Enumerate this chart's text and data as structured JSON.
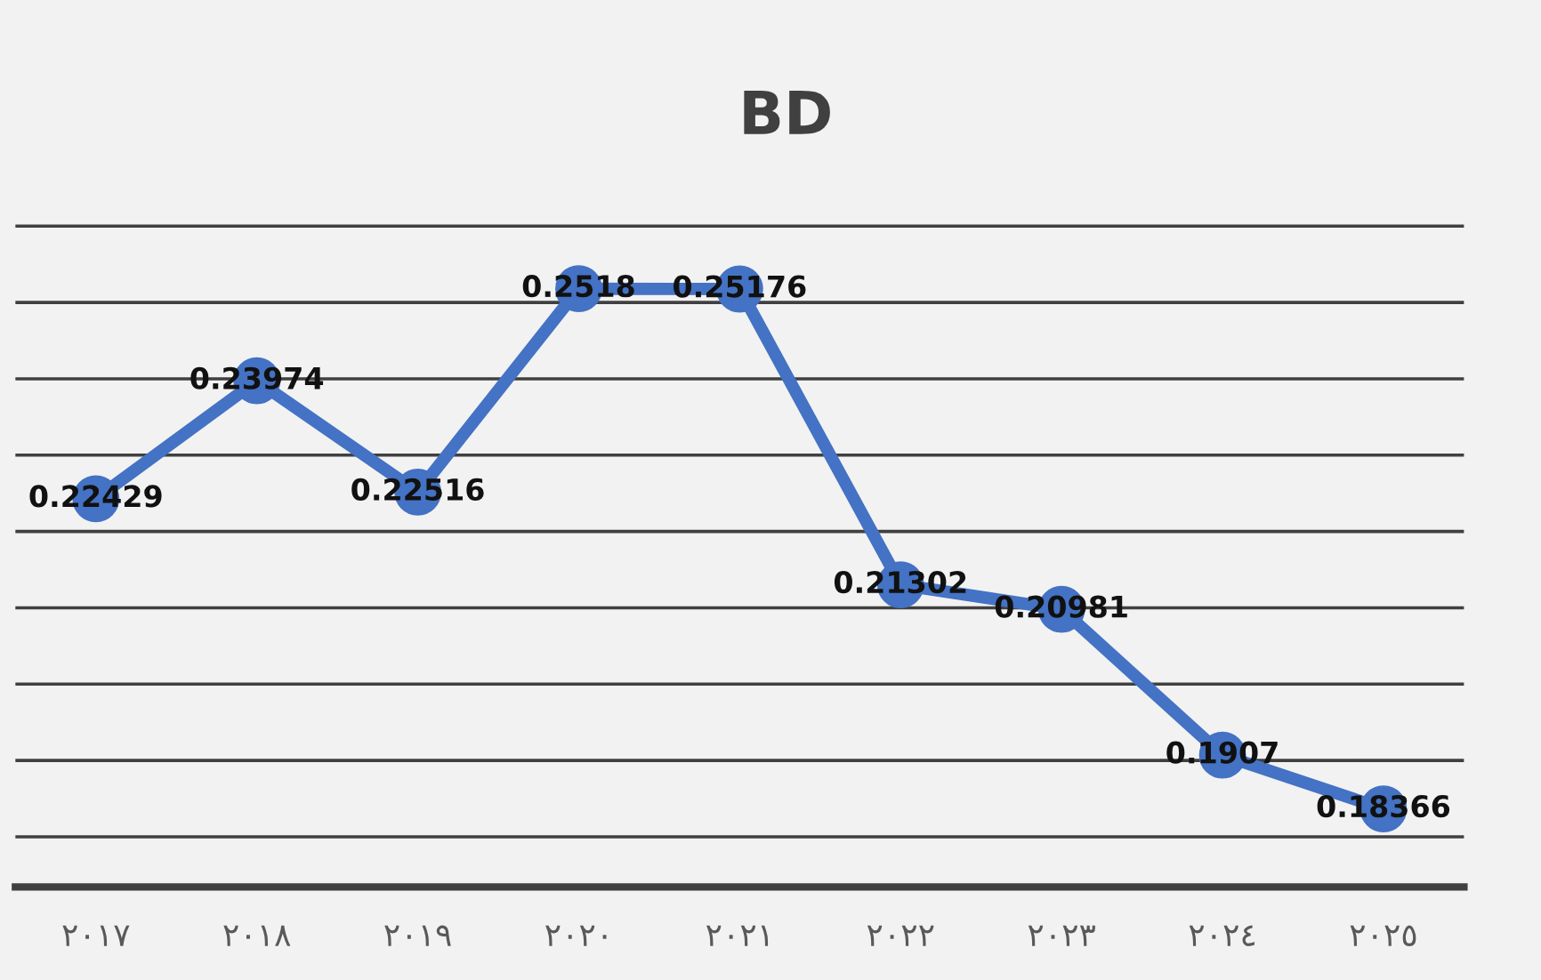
{
  "chart_data": {
    "type": "line",
    "title": "BD",
    "categories": [
      "٢٠١٧",
      "٢٠١٨",
      "٢٠١٩",
      "٢٠٢٠",
      "٢٠٢١",
      "٢٠٢٢",
      "٢٠٢٣",
      "٢٠٢٤",
      "٢٠٢٥"
    ],
    "series": [
      {
        "color": "#4472c4",
        "values": [
          0.22429,
          0.23974,
          0.22516,
          0.2518,
          0.25176,
          0.21302,
          0.20981,
          0.1907,
          0.18366
        ]
      }
    ],
    "grid": "y",
    "tick_labels": "x",
    "data_labels": true,
    "marker": "circle",
    "line_style": "solid",
    "legend": false
  }
}
